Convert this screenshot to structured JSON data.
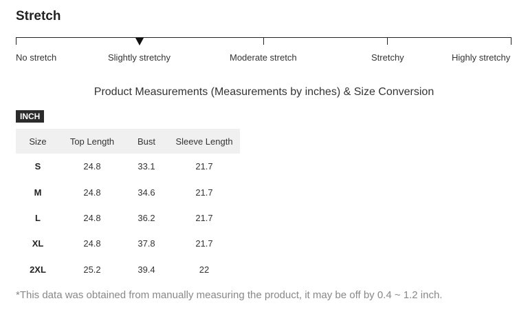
{
  "stretch": {
    "title": "Stretch",
    "levels": [
      "No stretch",
      "Slightly stretchy",
      "Moderate stretch",
      "Stretchy",
      "Highly stretchy"
    ],
    "selected": "Slightly stretchy"
  },
  "measurements": {
    "heading": "Product Measurements (Measurements by inches) & Size Conversion",
    "unit": "INCH",
    "columns": [
      "Size",
      "Top Length",
      "Bust",
      "Sleeve Length"
    ],
    "rows": [
      [
        "S",
        "24.8",
        "33.1",
        "21.7"
      ],
      [
        "M",
        "24.8",
        "34.6",
        "21.7"
      ],
      [
        "L",
        "24.8",
        "36.2",
        "21.7"
      ],
      [
        "XL",
        "24.8",
        "37.8",
        "21.7"
      ],
      [
        "2XL",
        "25.2",
        "39.4",
        "22"
      ]
    ]
  },
  "footnote": "*This data was obtained from manually measuring the product, it may be off by 0.4 ~ 1.2 inch."
}
